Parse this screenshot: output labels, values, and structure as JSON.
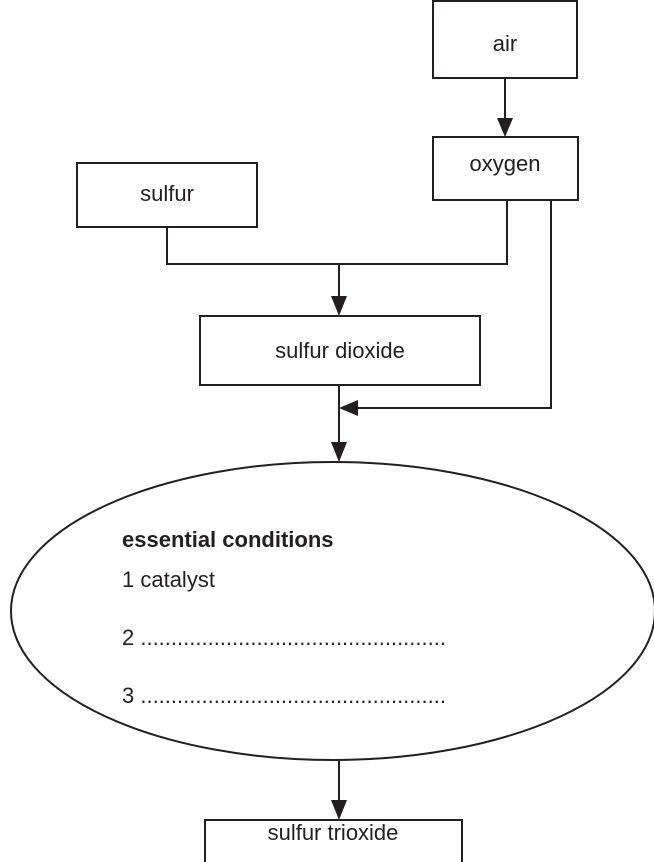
{
  "nodes": [
    {
      "label": "air"
    },
    {
      "label": "oxygen"
    },
    {
      "label": "sulfur"
    },
    {
      "label": "sulfur dioxide"
    },
    {
      "label": "sulfur trioxide"
    }
  ],
  "conditions": {
    "title": "essential conditions",
    "items": [
      "1 catalyst",
      "2 ..................................................",
      "3 .................................................."
    ]
  }
}
